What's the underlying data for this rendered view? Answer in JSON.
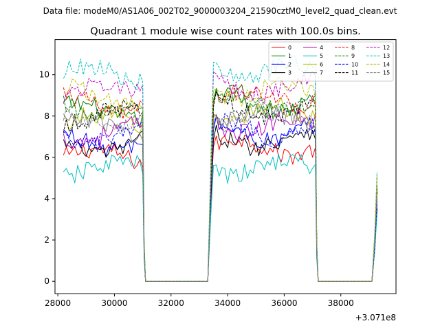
{
  "chart_data": {
    "type": "line",
    "suptitle": "Data file: modeM0/AS1A06_002T02_9000003204_21590cztM0_level2_quad_clean.evt",
    "title": "Quadrant 1 module wise count rates with 100.0s bins.",
    "xlabel": "",
    "ylabel": "",
    "x_offset_label": "+3.071e8",
    "xlim": [
      27900,
      39950
    ],
    "ylim": [
      -0.6,
      11.7
    ],
    "xticks": [
      28000,
      30000,
      32000,
      34000,
      36000,
      38000
    ],
    "xtick_labels": [
      "28000",
      "30000",
      "32000",
      "34000",
      "36000",
      "38000"
    ],
    "yticks": [
      0,
      2,
      4,
      6,
      8,
      10
    ],
    "ytick_labels": [
      "0",
      "2",
      "4",
      "6",
      "8",
      "10"
    ],
    "segments": [
      {
        "name": "orbit-1-on",
        "x_start": 28200,
        "x_end": 31000,
        "step": 100
      },
      {
        "name": "saa-gap-1",
        "x_start": 31100,
        "x_end": 33300,
        "step": 100,
        "value": 0
      },
      {
        "name": "orbit-2-on",
        "x_start": 33400,
        "x_end": 37100,
        "step": 100
      },
      {
        "name": "saa-gap-2",
        "x_start": 37200,
        "x_end": 39100,
        "step": 100,
        "value": 0
      }
    ],
    "series": [
      {
        "name": "0",
        "color": "#ff0000",
        "dash": "solid",
        "level_1": 6.0,
        "level_2": 6.5,
        "end_value": 3.6
      },
      {
        "name": "1",
        "color": "#008000",
        "dash": "solid",
        "level_1": 8.2,
        "level_2": 8.6,
        "end_value": 4.5
      },
      {
        "name": "2",
        "color": "#0000ff",
        "dash": "solid",
        "level_1": 6.8,
        "level_2": 7.2,
        "end_value": 3.9
      },
      {
        "name": "3",
        "color": "#000000",
        "dash": "solid",
        "level_1": 6.6,
        "level_2": 6.9,
        "end_value": 3.5
      },
      {
        "name": "4",
        "color": "#bf00bf",
        "dash": "solid",
        "level_1": 7.2,
        "level_2": 7.6,
        "end_value": 4.0
      },
      {
        "name": "5",
        "color": "#00bfbf",
        "dash": "solid",
        "level_1": 5.4,
        "level_2": 5.5,
        "end_value": 3.3
      },
      {
        "name": "6",
        "color": "#bfbf00",
        "dash": "solid",
        "level_1": 7.7,
        "level_2": 8.1,
        "end_value": 4.3
      },
      {
        "name": "7",
        "color": "#808080",
        "dash": "solid",
        "level_1": 7.5,
        "level_2": 7.9,
        "end_value": 4.1
      },
      {
        "name": "8",
        "color": "#ff0000",
        "dash": "dashed",
        "level_1": 8.6,
        "level_2": 8.9,
        "end_value": 4.6
      },
      {
        "name": "9",
        "color": "#008000",
        "dash": "dashed",
        "level_1": 8.4,
        "level_2": 8.7,
        "end_value": 4.7
      },
      {
        "name": "10",
        "color": "#0000ff",
        "dash": "dashed",
        "level_1": 7.0,
        "level_2": 7.3,
        "end_value": 3.8
      },
      {
        "name": "11",
        "color": "#000000",
        "dash": "dashed",
        "level_1": 8.0,
        "level_2": 8.4,
        "end_value": 4.4
      },
      {
        "name": "12",
        "color": "#bf00bf",
        "dash": "dashed",
        "level_1": 9.2,
        "level_2": 9.4,
        "end_value": 5.0
      },
      {
        "name": "13",
        "color": "#00bfbf",
        "dash": "dashed",
        "level_1": 10.0,
        "level_2": 10.2,
        "end_value": 5.3
      },
      {
        "name": "14",
        "color": "#bfbf00",
        "dash": "dashed",
        "level_1": 9.0,
        "level_2": 9.2,
        "end_value": 5.1
      },
      {
        "name": "15",
        "color": "#808080",
        "dash": "dashed",
        "level_1": 7.8,
        "level_2": 8.0,
        "end_value": 4.2
      }
    ],
    "legend_placement": "top-right",
    "legend_columns": 4,
    "grid": false
  }
}
